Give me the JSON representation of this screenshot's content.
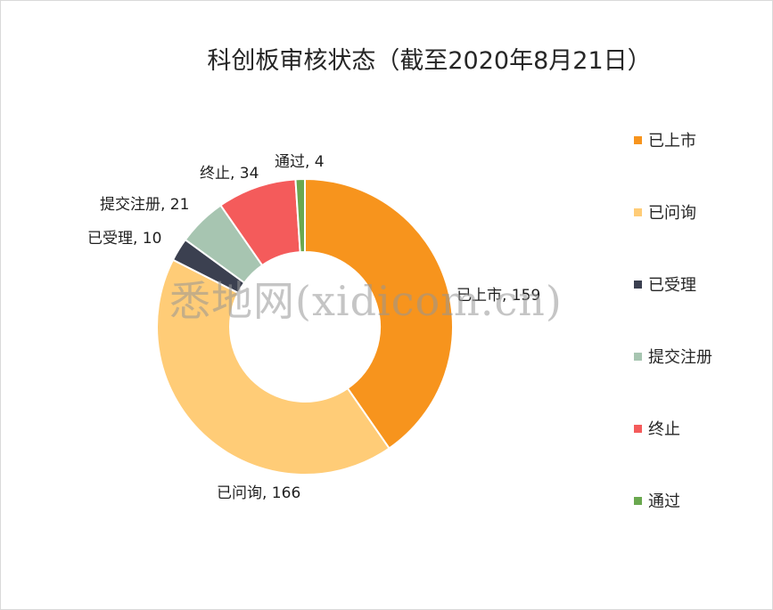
{
  "watermark": "悉地网(xidicom.cn)",
  "chart_data": {
    "type": "pie",
    "donut": true,
    "title": "科创板审核状态（截至2020年8月21日）",
    "legend_position": "right",
    "series": [
      {
        "name": "已上市",
        "value": 159,
        "label": "已上市, 159",
        "color": "#F7941D"
      },
      {
        "name": "已问询",
        "value": 166,
        "label": "已问询, 166",
        "color": "#FFCC77"
      },
      {
        "name": "已受理",
        "value": 10,
        "label": "已受理, 10",
        "color": "#3B4050"
      },
      {
        "name": "提交注册",
        "value": 21,
        "label": "提交注册, 21",
        "color": "#A7C5B1"
      },
      {
        "name": "终止",
        "value": 34,
        "label": "终止, 34",
        "color": "#F45B5B"
      },
      {
        "name": "通过",
        "value": 4,
        "label": "通过, 4",
        "color": "#6AA84F"
      }
    ]
  }
}
